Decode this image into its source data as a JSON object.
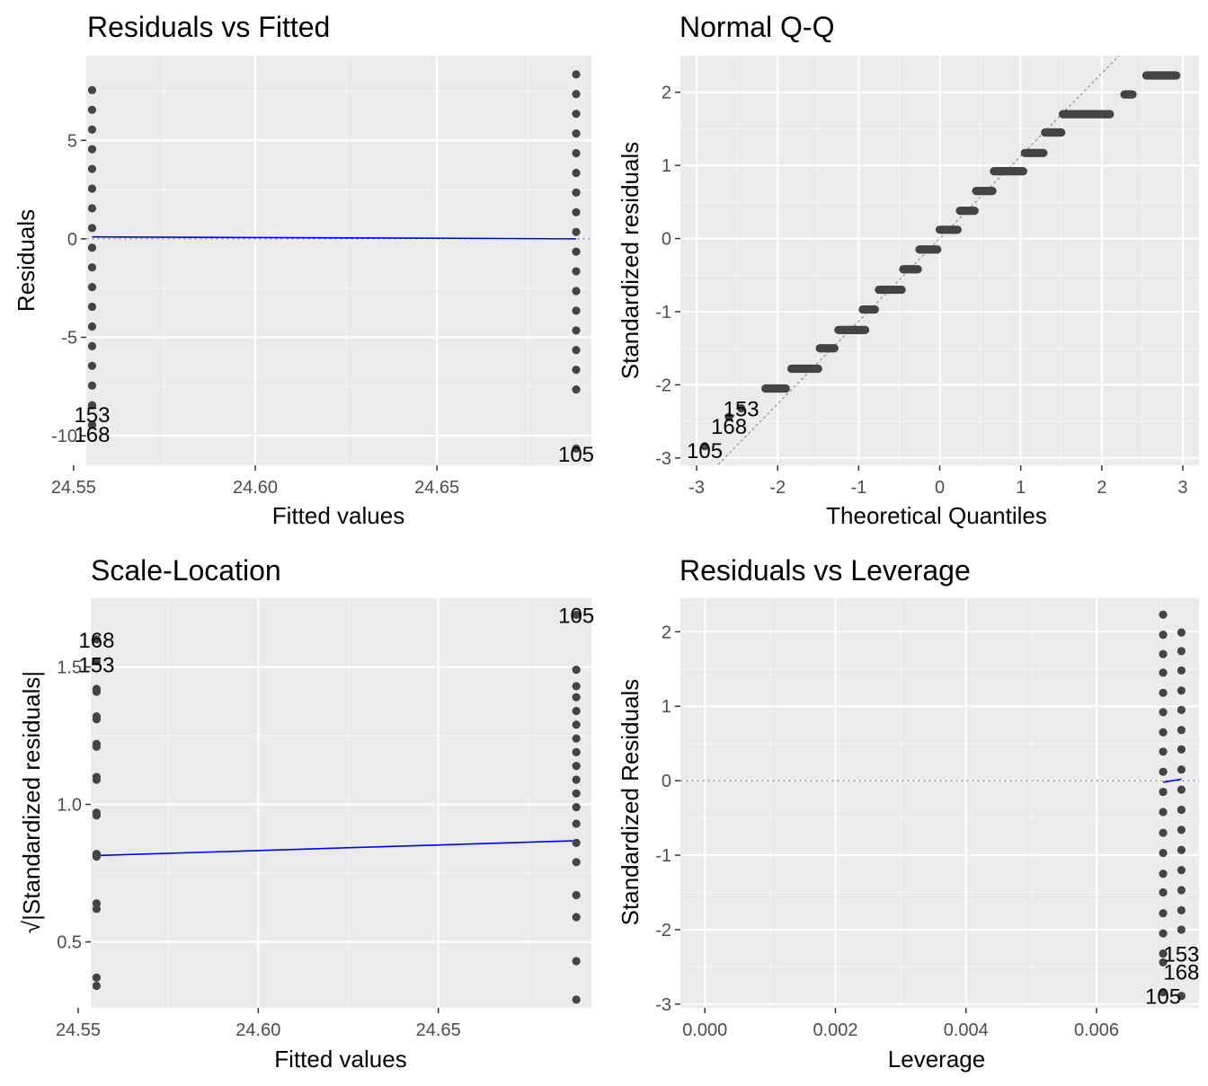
{
  "chart_data": [
    {
      "type": "scatter",
      "title": "Residuals vs Fitted",
      "xlabel": "Fitted values",
      "ylabel": "Residuals",
      "xlim": [
        24.5535,
        24.6925
      ],
      "ylim": [
        -11.5,
        9.3
      ],
      "xticks": [
        24.55,
        24.6,
        24.65
      ],
      "xtick_labels": [
        "24.55",
        "24.60",
        "24.65"
      ],
      "yticks": [
        -10,
        -5,
        0,
        5
      ],
      "ytick_labels": [
        "-10",
        "-5",
        "0",
        "5"
      ],
      "grid": true,
      "series": [
        {
          "x": 24.5551,
          "y": [
            7.55,
            6.55,
            5.55,
            4.55,
            3.55,
            2.55,
            1.55,
            0.55,
            -0.45,
            -1.45,
            -2.45,
            -3.45,
            -4.45,
            -5.45,
            -6.45,
            -7.45,
            -8.45,
            -9.45,
            -9.45
          ]
        },
        {
          "x": 24.6883,
          "y": [
            8.35,
            7.35,
            6.35,
            5.35,
            4.35,
            3.35,
            2.35,
            1.35,
            0.35,
            -0.65,
            -1.65,
            -2.65,
            -3.65,
            -4.65,
            -5.65,
            -6.65,
            -7.65,
            -10.65
          ]
        }
      ],
      "smooth": {
        "x": [
          24.5551,
          24.6883
        ],
        "y": [
          0.1,
          0.0
        ]
      },
      "refline_y": 0,
      "point_labels": [
        {
          "text": "153",
          "x": 24.5551,
          "y": -8.9
        },
        {
          "text": "168",
          "x": 24.5551,
          "y": -9.9
        },
        {
          "text": "105",
          "x": 24.6883,
          "y": -10.9
        }
      ]
    },
    {
      "type": "scatter",
      "title": "Normal Q-Q",
      "xlabel": "Theoretical Quantiles",
      "ylabel": "Standardized residuals",
      "xlim": [
        -3.2,
        3.2
      ],
      "ylim": [
        -3.1,
        2.5
      ],
      "xticks": [
        -3,
        -2,
        -1,
        0,
        1,
        2,
        3
      ],
      "xtick_labels": [
        "-3",
        "-2",
        "-1",
        "0",
        "1",
        "2",
        "3"
      ],
      "yticks": [
        -3,
        -2,
        -1,
        0,
        1,
        2
      ],
      "ytick_labels": [
        "-3",
        "-2",
        "-1",
        "0",
        "1",
        "2"
      ],
      "grid": true,
      "steps": [
        {
          "y": -2.84,
          "x_from": -2.9,
          "x_to": -2.9
        },
        {
          "y": -2.44,
          "x_from": -2.6,
          "x_to": -2.6
        },
        {
          "y": -2.32,
          "x_from": -2.45,
          "x_to": -2.45
        },
        {
          "y": -2.05,
          "x_from": -2.15,
          "x_to": -1.9
        },
        {
          "y": -1.78,
          "x_from": -1.83,
          "x_to": -1.5
        },
        {
          "y": -1.5,
          "x_from": -1.48,
          "x_to": -1.3
        },
        {
          "y": -1.25,
          "x_from": -1.25,
          "x_to": -0.92
        },
        {
          "y": -0.97,
          "x_from": -0.95,
          "x_to": -0.8
        },
        {
          "y": -0.7,
          "x_from": -0.75,
          "x_to": -0.47
        },
        {
          "y": -0.42,
          "x_from": -0.45,
          "x_to": -0.27
        },
        {
          "y": -0.15,
          "x_from": -0.25,
          "x_to": -0.03
        },
        {
          "y": 0.12,
          "x_from": 0.0,
          "x_to": 0.22
        },
        {
          "y": 0.38,
          "x_from": 0.25,
          "x_to": 0.43
        },
        {
          "y": 0.65,
          "x_from": 0.45,
          "x_to": 0.65
        },
        {
          "y": 0.92,
          "x_from": 0.67,
          "x_to": 1.03
        },
        {
          "y": 1.17,
          "x_from": 1.05,
          "x_to": 1.28
        },
        {
          "y": 1.45,
          "x_from": 1.3,
          "x_to": 1.5
        },
        {
          "y": 1.7,
          "x_from": 1.52,
          "x_to": 2.1
        },
        {
          "y": 1.97,
          "x_from": 2.28,
          "x_to": 2.38
        },
        {
          "y": 2.23,
          "x_from": 2.55,
          "x_to": 2.92
        }
      ],
      "refline": {
        "slope": 1.13,
        "intercept": 0.0
      },
      "point_labels": [
        {
          "text": "153",
          "x": -2.45,
          "y": -2.32
        },
        {
          "text": "168",
          "x": -2.6,
          "y": -2.56
        },
        {
          "text": "105",
          "x": -2.9,
          "y": -2.89
        }
      ]
    },
    {
      "type": "scatter",
      "title": "Scale-Location",
      "xlabel": "Fitted values",
      "ylabel": "√|Standardized residuals|",
      "xlim": [
        24.5535,
        24.6925
      ],
      "ylim": [
        0.26,
        1.75
      ],
      "xticks": [
        24.55,
        24.6,
        24.65
      ],
      "xtick_labels": [
        "24.55",
        "24.60",
        "24.65"
      ],
      "yticks": [
        0.5,
        1.0,
        1.5
      ],
      "ytick_labels": [
        "0.5",
        "1.0",
        "1.5"
      ],
      "grid": true,
      "series": [
        {
          "x": 24.5551,
          "y": [
            1.6,
            1.52,
            1.42,
            1.32,
            1.22,
            1.1,
            0.97,
            0.82,
            0.64,
            0.37,
            0.34,
            0.62,
            0.81,
            0.96,
            1.09,
            1.21,
            1.31,
            1.41
          ]
        },
        {
          "x": 24.6883,
          "y": [
            1.69,
            1.49,
            1.43,
            1.39,
            1.34,
            1.29,
            1.24,
            1.19,
            1.14,
            1.09,
            1.04,
            0.99,
            0.93,
            0.86,
            0.79,
            0.67,
            0.59,
            0.43,
            0.29
          ]
        }
      ],
      "smooth": {
        "x": [
          24.5551,
          24.6883
        ],
        "y": [
          0.814,
          0.868
        ]
      },
      "point_labels": [
        {
          "text": "168",
          "x": 24.5551,
          "y": 1.6
        },
        {
          "text": "153",
          "x": 24.5551,
          "y": 1.51
        },
        {
          "text": "105",
          "x": 24.6883,
          "y": 1.69
        }
      ]
    },
    {
      "type": "scatter",
      "title": "Residuals vs Leverage",
      "xlabel": "Leverage",
      "ylabel": "Standardized Residuals",
      "xlim": [
        -0.000375,
        0.00757
      ],
      "ylim": [
        -3.05,
        2.45
      ],
      "xticks": [
        0.0,
        0.002,
        0.004,
        0.006
      ],
      "xtick_labels": [
        "0.000",
        "0.002",
        "0.004",
        "0.006"
      ],
      "yticks": [
        -3,
        -2,
        -1,
        0,
        1,
        2
      ],
      "ytick_labels": [
        "-3",
        "-2",
        "-1",
        "0",
        "1",
        "2"
      ],
      "grid": true,
      "series": [
        {
          "x": 0.00702,
          "y": [
            2.23,
            1.96,
            1.7,
            1.45,
            1.18,
            0.92,
            0.65,
            0.39,
            0.12,
            -0.15,
            -0.42,
            -0.7,
            -0.97,
            -1.25,
            -1.5,
            -1.78,
            -2.05,
            -2.32,
            -2.44,
            -2.84
          ]
        },
        {
          "x": 0.0073,
          "y": [
            1.99,
            1.74,
            1.48,
            1.21,
            0.95,
            0.68,
            0.42,
            0.15,
            -0.12,
            -0.39,
            -0.66,
            -0.93,
            -1.2,
            -1.47,
            -1.74,
            -2.0,
            -2.89
          ]
        }
      ],
      "smooth": {
        "x": [
          0.00702,
          0.0073
        ],
        "y": [
          -0.02,
          0.02
        ]
      },
      "refline_y": 0,
      "point_labels": [
        {
          "text": "153",
          "x": 0.0073,
          "y": -2.32
        },
        {
          "text": "168",
          "x": 0.0073,
          "y": -2.56
        },
        {
          "text": "105",
          "x": 0.00702,
          "y": -2.89
        }
      ]
    }
  ]
}
